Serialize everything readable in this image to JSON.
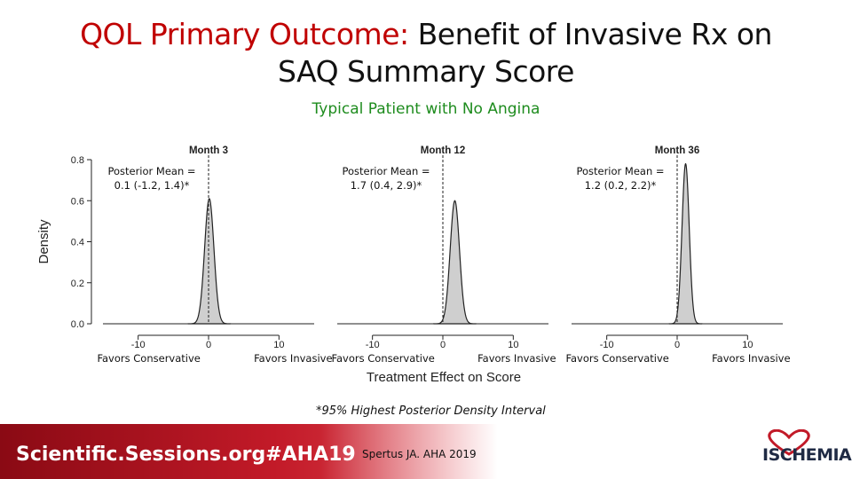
{
  "slide": {
    "title_red": "QOL Primary Outcome:",
    "title_black": " Benefit of Invasive Rx on",
    "title_line2": "SAQ Summary Score",
    "subtitle": "Typical Patient with No Angina",
    "footnote": "*95% Highest Posterior Density Interval",
    "footer_site": "Scientific.Sessions.org#AHA19",
    "footer_citation": "Spertus JA. AHA 2019",
    "logo_text": "ISCHEMIA",
    "colors": {
      "title_red": "#c00000",
      "subtitle_green": "#1e8c1e",
      "footer_red": "#c21a28"
    }
  },
  "chart_data": {
    "type": "area",
    "ylabel": "Density",
    "xlabel": "Treatment Effect on Score",
    "ylim": [
      0,
      0.8
    ],
    "y_ticks": [
      "0.0",
      "0.2",
      "0.4",
      "0.6",
      "0.8"
    ],
    "xlim": [
      -15,
      15
    ],
    "x_ticks": [
      "-10",
      "0",
      "10"
    ],
    "x_tick_values": [
      -10,
      0,
      10
    ],
    "left_label": "Favors Conservative",
    "right_label": "Favors Invasive",
    "panels": [
      {
        "name": "Month 3",
        "annotation_line1": "Posterior Mean =",
        "annotation_line2": "0.1 (-1.2, 1.4)*",
        "mean": 0.1,
        "sd": 0.66,
        "peak": 0.61
      },
      {
        "name": "Month 12",
        "annotation_line1": "Posterior Mean =",
        "annotation_line2": "1.7 (0.4, 2.9)*",
        "mean": 1.7,
        "sd": 0.66,
        "peak": 0.6
      },
      {
        "name": "Month 36",
        "annotation_line1": "Posterior Mean =",
        "annotation_line2": "1.2 (0.2, 2.2)*",
        "mean": 1.2,
        "sd": 0.51,
        "peak": 0.78
      }
    ]
  }
}
